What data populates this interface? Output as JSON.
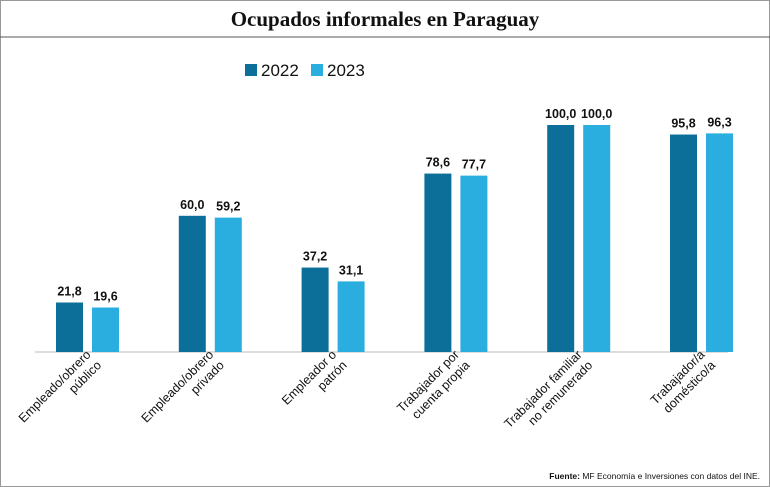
{
  "chart_data": {
    "type": "bar",
    "title": "Ocupados informales en Paraguay",
    "categories": [
      "Empleado/obrero\npúblico",
      "Empleado/obrero\nprivado",
      "Empleador o\npatrón",
      "Trabajador por\ncuenta propia",
      "Trabajador familiar\nno remunerado",
      "Trabajador/a\ndoméstico/a"
    ],
    "series": [
      {
        "name": "2022",
        "color": "#0b6f9a",
        "values": [
          21.8,
          60.0,
          37.2,
          78.6,
          100.0,
          95.8
        ],
        "value_labels": [
          "21,8",
          "60,0",
          "37,2",
          "78,6",
          "100,0",
          "95,8"
        ]
      },
      {
        "name": "2023",
        "color": "#2aaee0",
        "values": [
          19.6,
          59.2,
          31.1,
          77.7,
          100.0,
          96.3
        ],
        "value_labels": [
          "19,6",
          "59,2",
          "31,1",
          "77,7",
          "100,0",
          "96,3"
        ]
      }
    ],
    "ylim": [
      0,
      100
    ],
    "source_label": "Fuente:",
    "source": "MF Economía e Inversiones con datos del INE."
  }
}
